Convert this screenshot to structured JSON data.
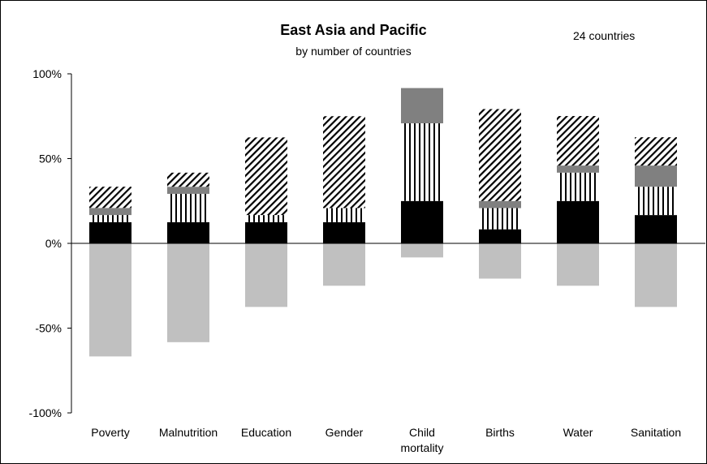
{
  "chart_data": {
    "type": "bar",
    "title": "East Asia and Pacific",
    "subtitle": "by number of countries",
    "note": "24 countries",
    "ylim": [
      -100,
      100
    ],
    "yticks": [
      100,
      50,
      0,
      -50,
      -100
    ],
    "ytick_labels": [
      "100%",
      "50%",
      "0%",
      "-50%",
      "-100%"
    ],
    "categories": [
      [
        "Poverty"
      ],
      [
        "Malnutrition"
      ],
      [
        "Education"
      ],
      [
        "Gender"
      ],
      [
        "Child",
        "mortality"
      ],
      [
        "Births"
      ],
      [
        "Water"
      ],
      [
        "Sanitation"
      ]
    ],
    "series": [
      {
        "pattern": "solid",
        "color": "#000000",
        "values": [
          12.5,
          12.5,
          12.5,
          12.5,
          25,
          8.3,
          25,
          16.7
        ]
      },
      {
        "pattern": "vertical-stripes",
        "color": "#000000",
        "values": [
          4.2,
          16.7,
          4.2,
          8.3,
          45.8,
          12.5,
          16.7,
          16.7
        ]
      },
      {
        "pattern": "solid",
        "color": "#808080",
        "values": [
          4.2,
          4.2,
          0,
          0,
          20.8,
          4.2,
          4.2,
          12.5
        ]
      },
      {
        "pattern": "diagonal-stripes",
        "color": "#000000",
        "values": [
          12.5,
          8.3,
          45.8,
          54.2,
          0,
          54.2,
          29.2,
          16.7
        ]
      },
      {
        "pattern": "solid",
        "color": "#c0c0c0",
        "values": [
          -66.7,
          -58.3,
          -37.5,
          -25,
          -8.3,
          -20.8,
          -25,
          -37.5
        ]
      }
    ]
  }
}
